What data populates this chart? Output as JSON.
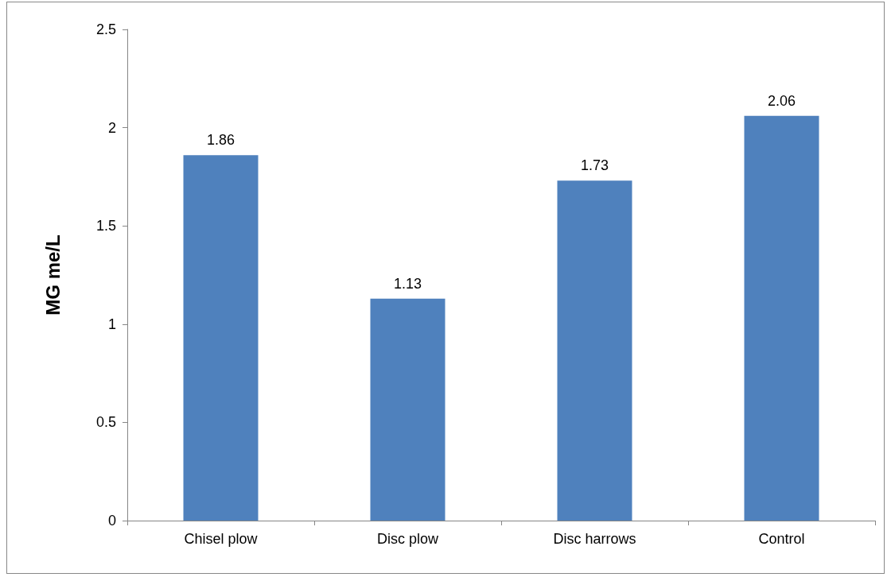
{
  "chart_data": {
    "type": "bar",
    "ylabel": "MG me/L",
    "categories": [
      "Chisel plow",
      "Disc plow",
      "Disc harrows",
      "Control"
    ],
    "values": [
      1.86,
      1.13,
      1.73,
      2.06
    ],
    "color": "#4f81bd",
    "ylim": [
      0,
      2.5
    ],
    "yticks": [
      0,
      0.5,
      1,
      1.5,
      2,
      2.5
    ],
    "grid": false,
    "data_labels": true
  }
}
